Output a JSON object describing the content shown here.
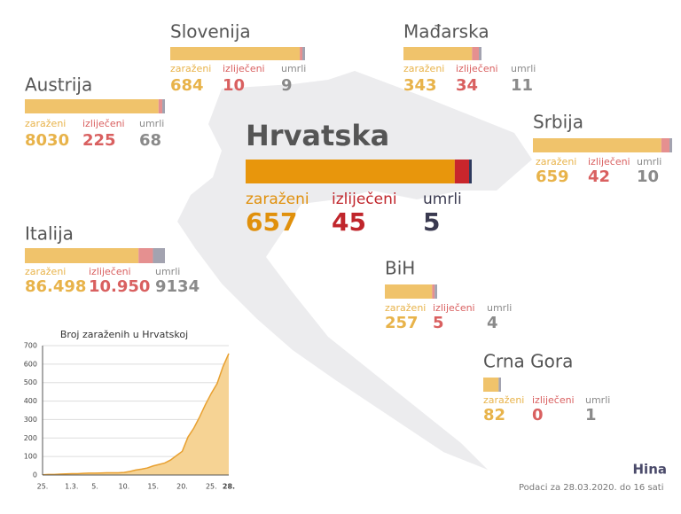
{
  "labels": [
    "zaraženi",
    "izliječeni",
    "umrli"
  ],
  "countries": [
    {
      "name": "Hrvatska",
      "values": [
        657,
        45,
        5
      ]
    },
    {
      "name": "Slovenija",
      "values": [
        684,
        10,
        9
      ]
    },
    {
      "name": "Mađarska",
      "values": [
        343,
        34,
        11
      ]
    },
    {
      "name": "Austrija",
      "values": [
        8030,
        225,
        68
      ]
    },
    {
      "name": "Srbija",
      "values": [
        659,
        42,
        10
      ]
    },
    {
      "name": "Italija",
      "values": [
        86498,
        10950,
        9134
      ],
      "value_labels": [
        "86.498",
        "10.950",
        "9134"
      ]
    },
    {
      "name": "BiH",
      "values": [
        257,
        5,
        4
      ]
    },
    {
      "name": "Crna Gora",
      "values": [
        82,
        0,
        1
      ]
    }
  ],
  "footer": "Podaci za 28.03.2020. do 16 sati",
  "logo": "Hina",
  "chart_data": {
    "type": "line",
    "title": "Broj zaraženih u Hrvatskoj",
    "categories": [
      "25.",
      null,
      null,
      null,
      null,
      "1.3.",
      null,
      null,
      null,
      "5.",
      null,
      null,
      null,
      null,
      "10.",
      null,
      null,
      null,
      null,
      "15.",
      null,
      null,
      null,
      null,
      "20.",
      null,
      null,
      null,
      null,
      "25.",
      null,
      null,
      "28."
    ],
    "values": [
      1,
      3,
      3,
      5,
      6,
      7,
      7,
      9,
      10,
      10,
      11,
      12,
      12,
      12,
      14,
      19,
      27,
      32,
      38,
      49,
      57,
      65,
      81,
      105,
      128,
      206,
      254,
      315,
      382,
      442,
      495,
      586,
      657
    ],
    "color": "#e8a030",
    "fill": "#f6d394",
    "ylim": [
      0,
      700
    ],
    "yticks": [
      0,
      100,
      200,
      300,
      400,
      500,
      600,
      700
    ],
    "grid": true
  }
}
